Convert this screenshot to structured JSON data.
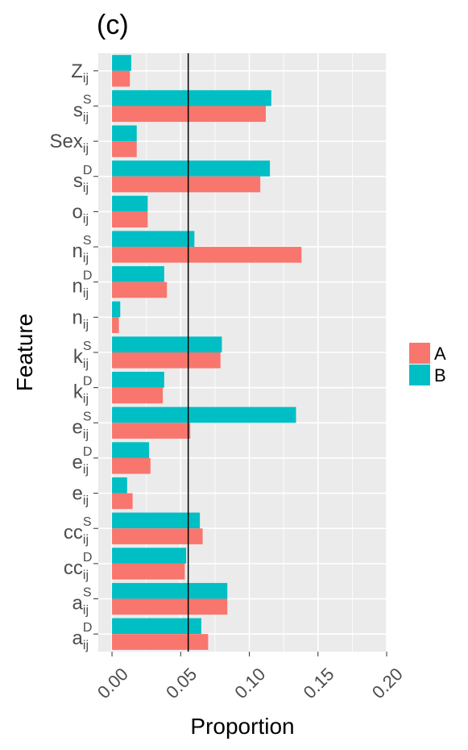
{
  "panel_label": "(c)",
  "colors": {
    "A": "#F8766D",
    "B": "#00BFC4",
    "panel_bg": "#EBEBEB",
    "grid": "#FFFFFF",
    "ref_line": "#000000"
  },
  "chart_data": {
    "type": "bar",
    "orientation": "horizontal",
    "title": "(c)",
    "xlabel": "Proportion",
    "ylabel": "Feature",
    "xlim": [
      -0.01,
      0.2
    ],
    "x_ticks": [
      0.0,
      0.05,
      0.1,
      0.15,
      0.2
    ],
    "x_tick_labels": [
      "0.00",
      "0.05",
      "0.10",
      "0.15",
      "0.20"
    ],
    "reference_line_x": 0.0555,
    "grid": true,
    "legend_position": "right",
    "categories": [
      {
        "base": "Z",
        "sup": "",
        "sub": "ij"
      },
      {
        "base": "s",
        "sup": "S",
        "sub": "ij"
      },
      {
        "base": "Sex",
        "sup": "",
        "sub": "ij"
      },
      {
        "base": "s",
        "sup": "D",
        "sub": "ij"
      },
      {
        "base": "o",
        "sup": "",
        "sub": "ij"
      },
      {
        "base": "n",
        "sup": "S",
        "sub": "ij"
      },
      {
        "base": "n",
        "sup": "D",
        "sub": "ij"
      },
      {
        "base": "n",
        "sup": "",
        "sub": "ij"
      },
      {
        "base": "k",
        "sup": "S",
        "sub": "ij"
      },
      {
        "base": "k",
        "sup": "D",
        "sub": "ij"
      },
      {
        "base": "e",
        "sup": "S",
        "sub": "ij"
      },
      {
        "base": "e",
        "sup": "D",
        "sub": "ij"
      },
      {
        "base": "e",
        "sup": "",
        "sub": "ij"
      },
      {
        "base": "cc",
        "sup": "S",
        "sub": "ij"
      },
      {
        "base": "cc",
        "sup": "D",
        "sub": "ij"
      },
      {
        "base": "a",
        "sup": "S",
        "sub": "ij"
      },
      {
        "base": "a",
        "sup": "D",
        "sub": "ij"
      }
    ],
    "series": [
      {
        "name": "A",
        "values": [
          0.013,
          0.112,
          0.018,
          0.108,
          0.026,
          0.138,
          0.04,
          0.005,
          0.079,
          0.037,
          0.057,
          0.028,
          0.015,
          0.066,
          0.053,
          0.084,
          0.07
        ]
      },
      {
        "name": "B",
        "values": [
          0.014,
          0.116,
          0.018,
          0.115,
          0.026,
          0.06,
          0.038,
          0.006,
          0.08,
          0.038,
          0.134,
          0.027,
          0.011,
          0.064,
          0.054,
          0.084,
          0.065
        ]
      }
    ]
  }
}
